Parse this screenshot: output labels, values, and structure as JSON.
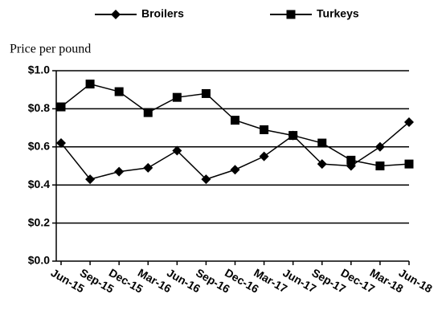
{
  "chart_data": {
    "type": "line",
    "y_label": "Price per pound",
    "categories": [
      "Jun-15",
      "Sep-15",
      "Dec-15",
      "Mar-16",
      "Jun-16",
      "Sep-16",
      "Dec-16",
      "Mar-17",
      "Jun-17",
      "Sep-17",
      "Dec-17",
      "Mar-18",
      "Jun-18"
    ],
    "series": [
      {
        "name": "Broilers",
        "color": "#000000",
        "marker": "diamond",
        "values": [
          0.62,
          0.43,
          0.47,
          0.49,
          0.58,
          0.43,
          0.48,
          0.55,
          0.66,
          0.51,
          0.5,
          0.6,
          0.73
        ]
      },
      {
        "name": "Turkeys",
        "color": "#000000",
        "marker": "square",
        "values": [
          0.81,
          0.93,
          0.89,
          0.78,
          0.86,
          0.88,
          0.74,
          0.69,
          0.66,
          0.62,
          0.53,
          0.5,
          0.51
        ]
      }
    ],
    "ylim": [
      0,
      1
    ],
    "yticks": [
      {
        "value": 0,
        "label": "$0.0"
      },
      {
        "value": 0.2,
        "label": "$0.2"
      },
      {
        "value": 0.4,
        "label": "$0.4"
      },
      {
        "value": 0.6,
        "label": "$0.6"
      },
      {
        "value": 0.8,
        "label": "$0.8"
      },
      {
        "value": 1,
        "label": "$1.0"
      }
    ],
    "grid": true,
    "legend": "top"
  }
}
